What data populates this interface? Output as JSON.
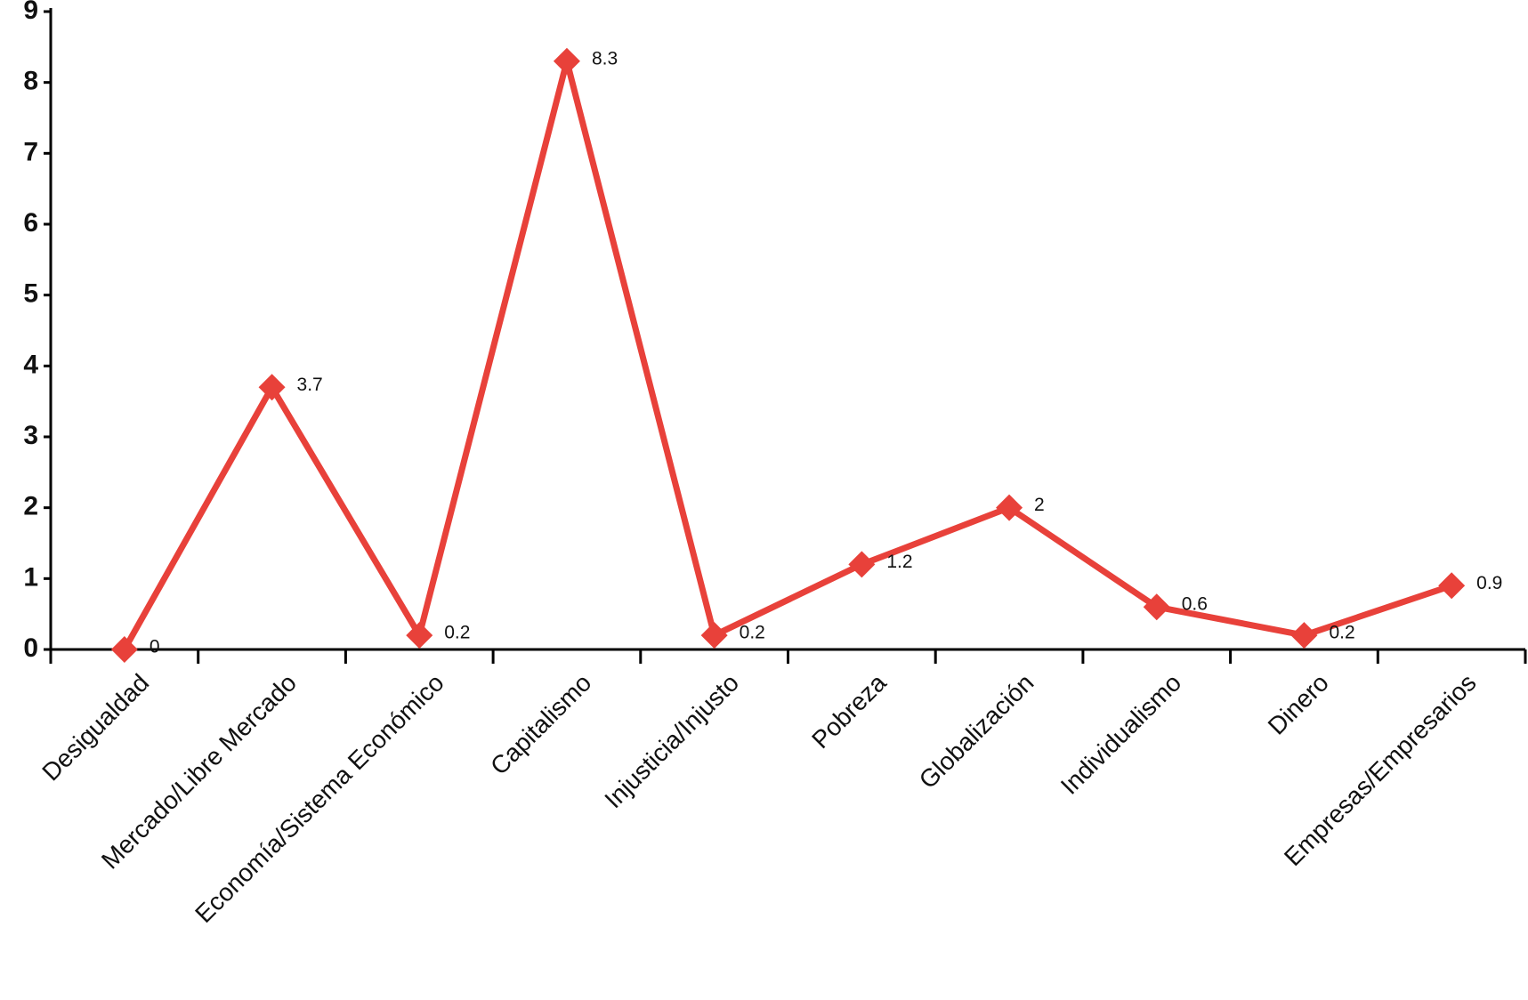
{
  "chart_data": {
    "type": "line",
    "categories": [
      "Desigualdad",
      "Mercado/Libre Mercado",
      "Economía/Sistema Económico",
      "Capitalismo",
      "Injusticia/Injusto",
      "Pobreza",
      "Globalización",
      "Individualismo",
      "Dinero",
      "Empresas/Empresarios"
    ],
    "values": [
      0,
      3.7,
      0.2,
      8.3,
      0.2,
      1.2,
      2,
      0.6,
      0.2,
      0.9
    ],
    "color": "#e8413a",
    "ylim": [
      0,
      9
    ],
    "yticks": [
      0,
      1,
      2,
      3,
      4,
      5,
      6,
      7,
      8,
      9
    ],
    "grid": false
  }
}
